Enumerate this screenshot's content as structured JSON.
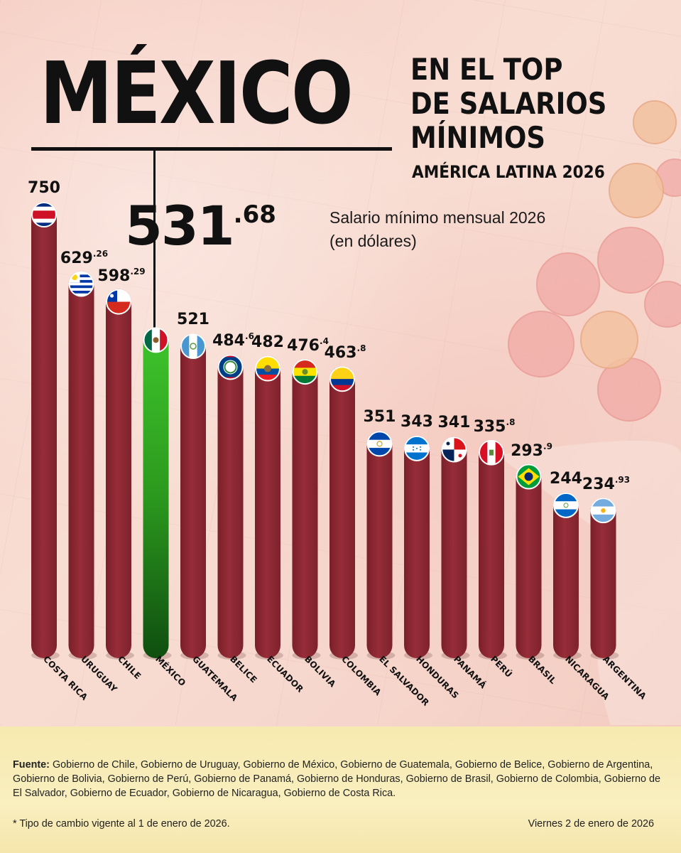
{
  "title": {
    "main": "MÉXICO",
    "subtitle_lines": [
      "EN EL TOP",
      "DE SALARIOS",
      "MÍNIMOS"
    ],
    "region": "AMÉRICA LATINA 2026"
  },
  "highlight": {
    "country": "MÉXICO",
    "value_int": "531",
    "value_dec": ".68",
    "value": 531.68
  },
  "unit_note_lines": [
    "Salario mínimo mensual 2026",
    "(en dólares)"
  ],
  "colors": {
    "bar": "#962d38",
    "highlight_bar": "#2c9a1e",
    "footer_band": "#f8ebb4"
  },
  "chart_data": {
    "type": "bar",
    "title": "Salario mínimo mensual 2026 (en dólares)",
    "ylim": [
      0,
      750
    ],
    "categories": [
      "COSTA RICA",
      "URUGUAY",
      "CHILE",
      "MÉXICO",
      "GUATEMALA",
      "BELICE",
      "ECUADOR",
      "BOLIVIA",
      "COLOMBIA",
      "EL SALVADOR",
      "HONDURAS",
      "PANAMÁ",
      "PERÚ",
      "BRASIL",
      "NICARAGUA",
      "ARGENTINA"
    ],
    "values": [
      750,
      629.26,
      598.29,
      531.68,
      521,
      484.6,
      482,
      476.4,
      463.8,
      351,
      343,
      341,
      335.8,
      293.9,
      244,
      234.93
    ],
    "value_labels": [
      {
        "i": "750",
        "d": ""
      },
      {
        "i": "629",
        "d": ".26"
      },
      {
        "i": "598",
        "d": ".29"
      },
      {
        "i": "",
        "d": ""
      },
      {
        "i": "521",
        "d": ""
      },
      {
        "i": "484",
        "d": ".6"
      },
      {
        "i": "482",
        "d": ""
      },
      {
        "i": "476",
        "d": ".4"
      },
      {
        "i": "463",
        "d": ".8"
      },
      {
        "i": "351",
        "d": ""
      },
      {
        "i": "343",
        "d": ""
      },
      {
        "i": "341",
        "d": ""
      },
      {
        "i": "335",
        "d": ".8"
      },
      {
        "i": "293",
        "d": ".9"
      },
      {
        "i": "244",
        "d": ""
      },
      {
        "i": "234",
        "d": ".93"
      }
    ],
    "flag_icons": [
      "costa-rica-flag-icon",
      "uruguay-flag-icon",
      "chile-flag-icon",
      "mexico-flag-icon",
      "guatemala-flag-icon",
      "belize-flag-icon",
      "ecuador-flag-icon",
      "bolivia-flag-icon",
      "colombia-flag-icon",
      "el-salvador-flag-icon",
      "honduras-flag-icon",
      "panama-flag-icon",
      "peru-flag-icon",
      "brazil-flag-icon",
      "nicaragua-flag-icon",
      "argentina-flag-icon"
    ],
    "highlight_index": 3,
    "grid": false,
    "legend": "none"
  },
  "footer": {
    "source_label": "Fuente:",
    "source_text": " Gobierno de Chile, Gobierno de Uruguay, Gobierno de México, Gobierno de Guatemala, Gobierno de Belice, Gobierno de Argentina, Gobierno de Bolivia, Gobierno de Perú, Gobierno de Panamá, Gobierno de Honduras, Gobierno de Brasil, Gobierno de Colombia, Gobierno de El Salvador, Gobierno de Ecuador, Gobierno de Nicaragua, Gobierno de Costa Rica.",
    "footnote": "*  Tipo de cambio vigente al 1 de enero de 2026.",
    "date": "Viernes 2 de enero de 2026"
  }
}
